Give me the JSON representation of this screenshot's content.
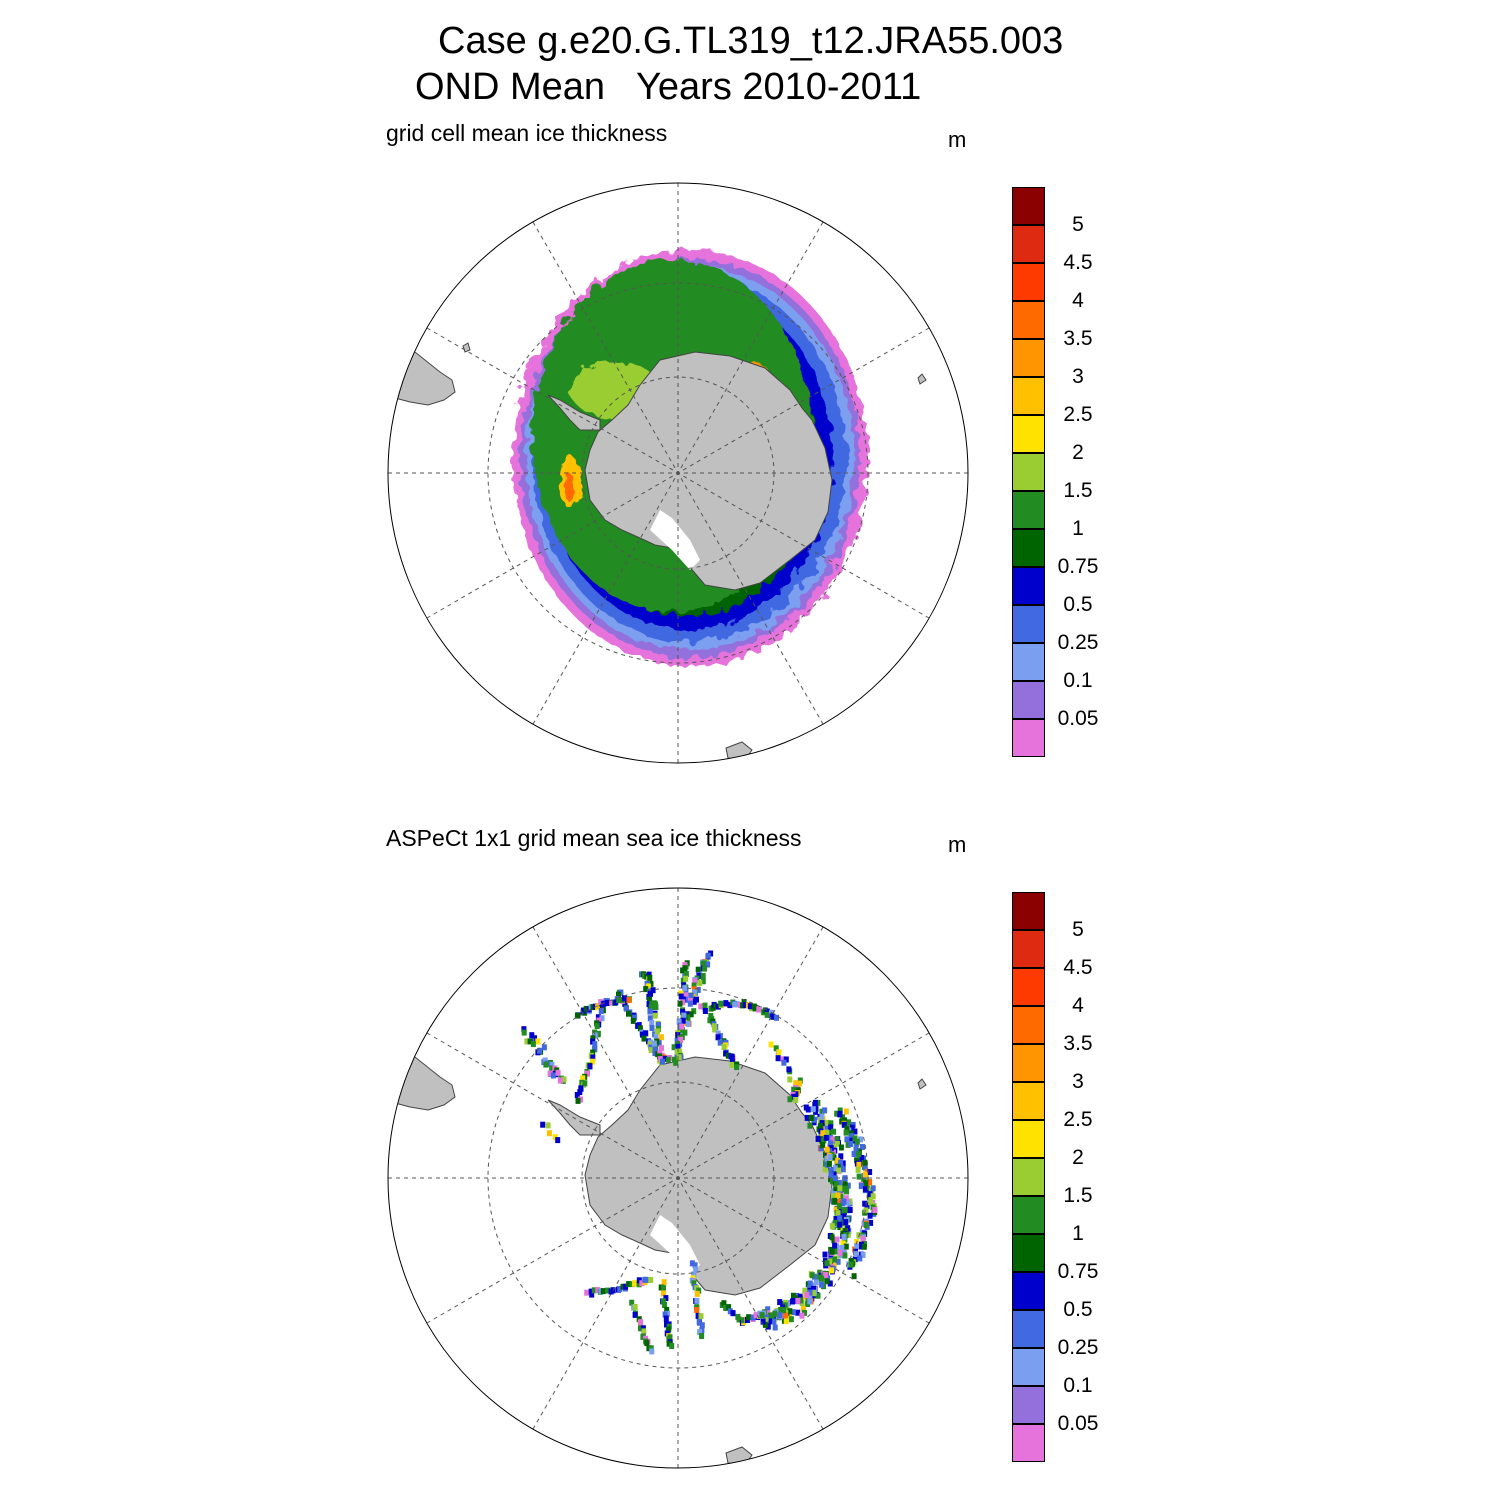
{
  "header": {
    "title_line1": "Case g.e20.G.TL319_t12.JRA55.003",
    "title_line2": "OND Mean   Years 2010-2011"
  },
  "panels": [
    {
      "name": "model",
      "title": "grid cell mean ice thickness",
      "units": "m"
    },
    {
      "name": "observations",
      "title": "ASPeCt 1x1 grid mean sea ice thickness",
      "units": "m"
    }
  ],
  "colorbar": {
    "labels": [
      "5",
      "4.5",
      "4",
      "3.5",
      "3",
      "2.5",
      "2",
      "1.5",
      "1",
      "0.75",
      "0.5",
      "0.25",
      "0.1",
      "0.05"
    ],
    "colors": [
      "#8b0000",
      "#dd2a10",
      "#ff3a00",
      "#ff6a00",
      "#ff9500",
      "#ffc000",
      "#ffe200",
      "#9acd32",
      "#228b22",
      "#006400",
      "#0000cd",
      "#4169e1",
      "#7b9ff0",
      "#9370db",
      "#e672dc"
    ]
  },
  "colors": {
    "land": "#c0c0c0",
    "grid": "#555555"
  }
}
